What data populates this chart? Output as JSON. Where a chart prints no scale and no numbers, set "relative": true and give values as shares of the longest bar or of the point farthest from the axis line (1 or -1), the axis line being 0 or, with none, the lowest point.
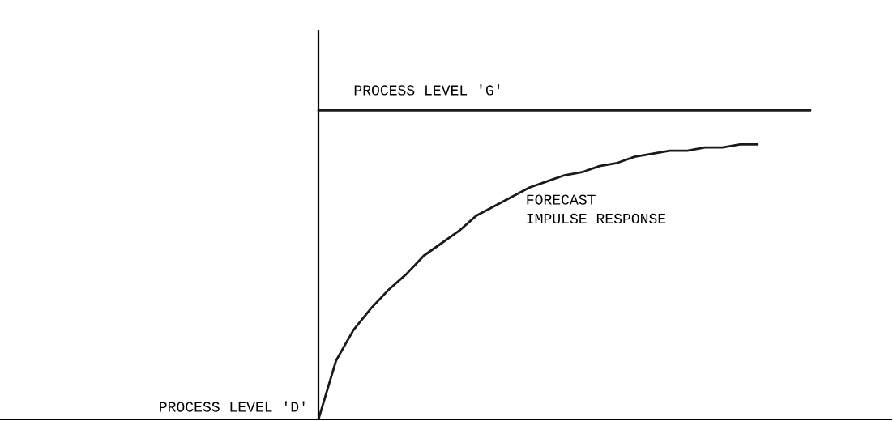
{
  "chart_data": {
    "type": "line",
    "relative": true,
    "legend": false,
    "marker": "none",
    "line_style": "solid",
    "categories": [
      null,
      null,
      null,
      null,
      null,
      null,
      null,
      null,
      null,
      null,
      null,
      null,
      null,
      null,
      null,
      null,
      null,
      null,
      null,
      null,
      null,
      null,
      null,
      null,
      null,
      null,
      null,
      null,
      null
    ],
    "series": [
      {
        "name": "PROCESS LEVEL 'G'",
        "color": "#1a1a1a",
        "values": [
          1,
          1,
          1,
          1,
          1,
          1,
          1,
          1,
          1,
          1,
          1,
          1,
          1,
          1,
          1,
          1,
          1,
          1,
          1,
          1,
          1,
          1,
          1,
          1,
          1,
          1,
          1,
          1,
          1
        ]
      },
      {
        "name": "FORECAST\nIMPULSE RESPONSE",
        "color": "#1a1a1a",
        "values": [
          0,
          0.19,
          0.29,
          0.36,
          0.42,
          0.47,
          0.53,
          0.57,
          0.61,
          0.66,
          0.69,
          0.72,
          0.75,
          0.77,
          0.79,
          0.8,
          0.82,
          0.83,
          0.85,
          0.86,
          0.87,
          0.87,
          0.88,
          0.88,
          0.89,
          0.89,
          null,
          null,
          null
        ]
      }
    ],
    "annotations": [
      "PROCESS LEVEL 'D'"
    ]
  }
}
